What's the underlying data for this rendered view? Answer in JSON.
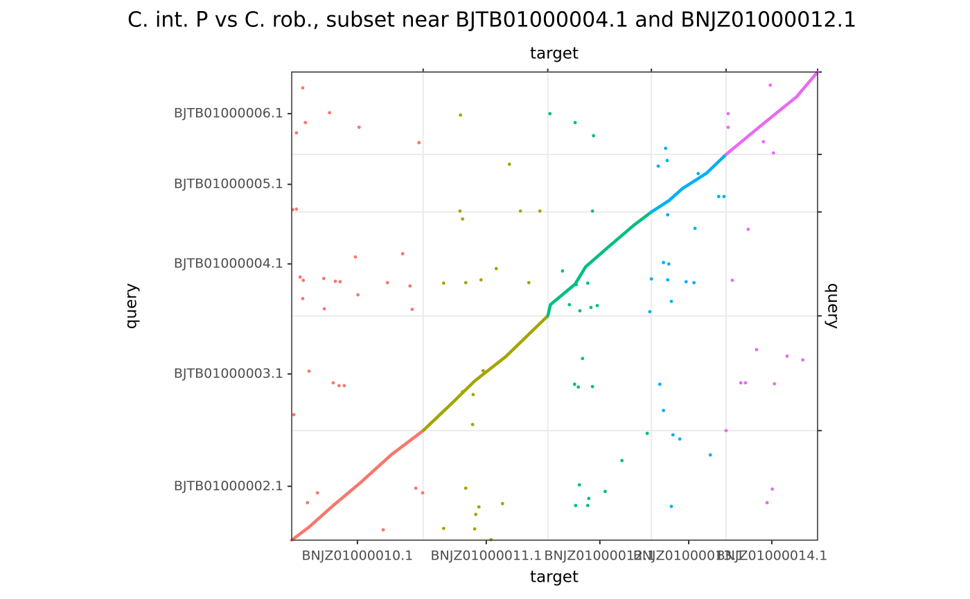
{
  "chart_data": {
    "type": "scatter",
    "title": "C. int. P vs C. rob., subset near BJTB01000004.1 and BNJZ01000012.1",
    "xlabel": "target",
    "ylabel": "query",
    "xlim": [
      0,
      1000
    ],
    "ylim": [
      0,
      1000
    ],
    "xticks": [
      {
        "value": 125,
        "label": "BNJZ01000010.1"
      },
      {
        "value": 370,
        "label": "BNJZ01000011.1"
      },
      {
        "value": 586,
        "label": "BNJZ01000012.1"
      },
      {
        "value": 755,
        "label": "BNJZ01000013.1"
      },
      {
        "value": 913,
        "label": "BNJZ01000014.1"
      }
    ],
    "yticks": [
      {
        "value": 115,
        "label": "BJTB01000002.1"
      },
      {
        "value": 355,
        "label": "BJTB01000003.1"
      },
      {
        "value": 590,
        "label": "BJTB01000004.1"
      },
      {
        "value": 760,
        "label": "BJTB01000005.1"
      },
      {
        "value": 911,
        "label": "BJTB01000006.1"
      }
    ],
    "x2ticks": [
      250,
      487,
      684,
      826,
      1000
    ],
    "y2ticks": [
      234,
      479,
      701,
      824,
      1000
    ],
    "grid": true,
    "series": [
      {
        "color": "#f8766d",
        "diagonal_x": [
          0,
          32,
          79,
          131,
          190,
          236,
          250
        ],
        "diagonal_y": [
          0,
          27,
          74,
          123,
          183,
          222,
          234
        ],
        "x": [
          21,
          9,
          26,
          72,
          128,
          242,
          9,
          2,
          121,
          211,
          16,
          22,
          61,
          21,
          62,
          83,
          92,
          182,
          225,
          126,
          229,
          33,
          79,
          90,
          100,
          4,
          236,
          249,
          49,
          30,
          174
        ],
        "y": [
          966,
          870,
          892,
          913,
          882,
          849,
          707,
          706,
          605,
          612,
          562,
          555,
          559,
          516,
          494,
          553,
          552,
          550,
          543,
          524,
          493,
          361,
          336,
          330,
          330,
          268,
          111,
          101,
          101,
          80,
          22
        ]
      },
      {
        "color": "#a3a500",
        "diagonal_x": [
          250,
          308,
          348,
          407,
          487
        ],
        "diagonal_y": [
          234,
          296,
          340,
          392,
          479
        ],
        "x": [
          321,
          414,
          320,
          325,
          435,
          472,
          389,
          289,
          331,
          360,
          451,
          364,
          325,
          345,
          344,
          331,
          356,
          350,
          401,
          289,
          348,
          379
        ],
        "y": [
          908,
          803,
          703,
          686,
          703,
          703,
          580,
          549,
          550,
          556,
          550,
          362,
          317,
          311,
          247,
          111,
          71,
          55,
          78,
          25,
          24,
          1
        ]
      },
      {
        "color": "#00bf7d",
        "diagonal_x": [
          487,
          492,
          539,
          559,
          605,
          651,
          684
        ],
        "diagonal_y": [
          479,
          503,
          547,
          584,
          629,
          673,
          701
        ],
        "x": [
          491,
          539,
          574,
          572,
          515,
          541,
          563,
          528,
          548,
          569,
          581,
          553,
          538,
          545,
          572,
          628,
          547,
          596,
          565,
          563,
          540,
          676
        ],
        "y": [
          911,
          892,
          864,
          703,
          575,
          546,
          549,
          503,
          490,
          497,
          501,
          388,
          333,
          327,
          328,
          170,
          118,
          104,
          89,
          74,
          74,
          228
        ]
      },
      {
        "color": "#00b0f6",
        "diagonal_x": [
          684,
          717,
          743,
          789,
          826
        ],
        "diagonal_y": [
          701,
          725,
          751,
          784,
          824
        ],
        "x": [
          711,
          697,
          714,
          773,
          812,
          822,
          715,
          767,
          707,
          717,
          684,
          715,
          750,
          765,
          722,
          681,
          700,
          707,
          725,
          738,
          796,
          722
        ],
        "y": [
          837,
          799,
          811,
          783,
          734,
          734,
          695,
          666,
          593,
          590,
          558,
          556,
          552,
          550,
          510,
          488,
          333,
          277,
          225,
          216,
          182,
          72
        ]
      },
      {
        "color": "#e76bf3",
        "diagonal_x": [
          826,
          895,
          960,
          1000
        ],
        "diagonal_y": [
          824,
          888,
          947,
          1000
        ],
        "x": [
          830,
          830,
          910,
          897,
          916,
          868,
          838,
          884,
          942,
          972,
          854,
          863,
          918,
          826,
          914,
          904
        ],
        "y": [
          911,
          882,
          972,
          851,
          827,
          664,
          555,
          407,
          393,
          385,
          336,
          336,
          334,
          234,
          109,
          80
        ]
      }
    ]
  }
}
